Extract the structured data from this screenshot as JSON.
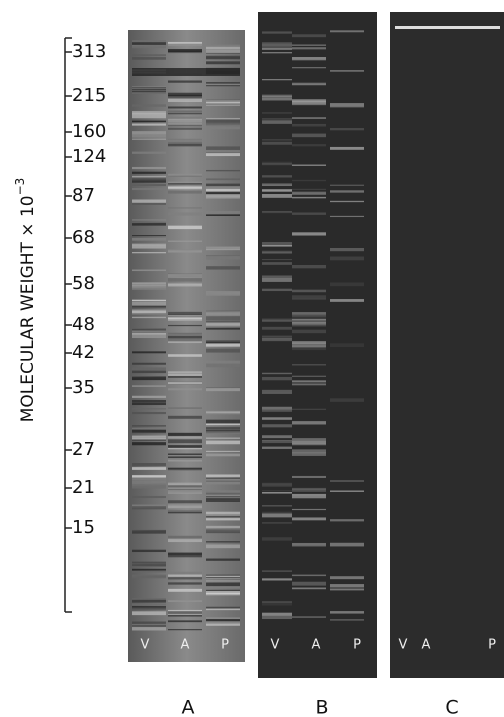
{
  "axis": {
    "title": "MOLECULAR WEIGHT × 10",
    "exponent": "−3",
    "ticks": [
      "313",
      "215",
      "160",
      "124",
      "87",
      "68",
      "58",
      "48",
      "42",
      "35",
      "27",
      "21",
      "15"
    ]
  },
  "panels": [
    {
      "label": "A",
      "lanes": [
        "V",
        "A",
        "P"
      ]
    },
    {
      "label": "B",
      "lanes": [
        "V",
        "A",
        "P"
      ]
    },
    {
      "label": "C",
      "lanes": [
        "V",
        "A",
        "P"
      ]
    }
  ]
}
